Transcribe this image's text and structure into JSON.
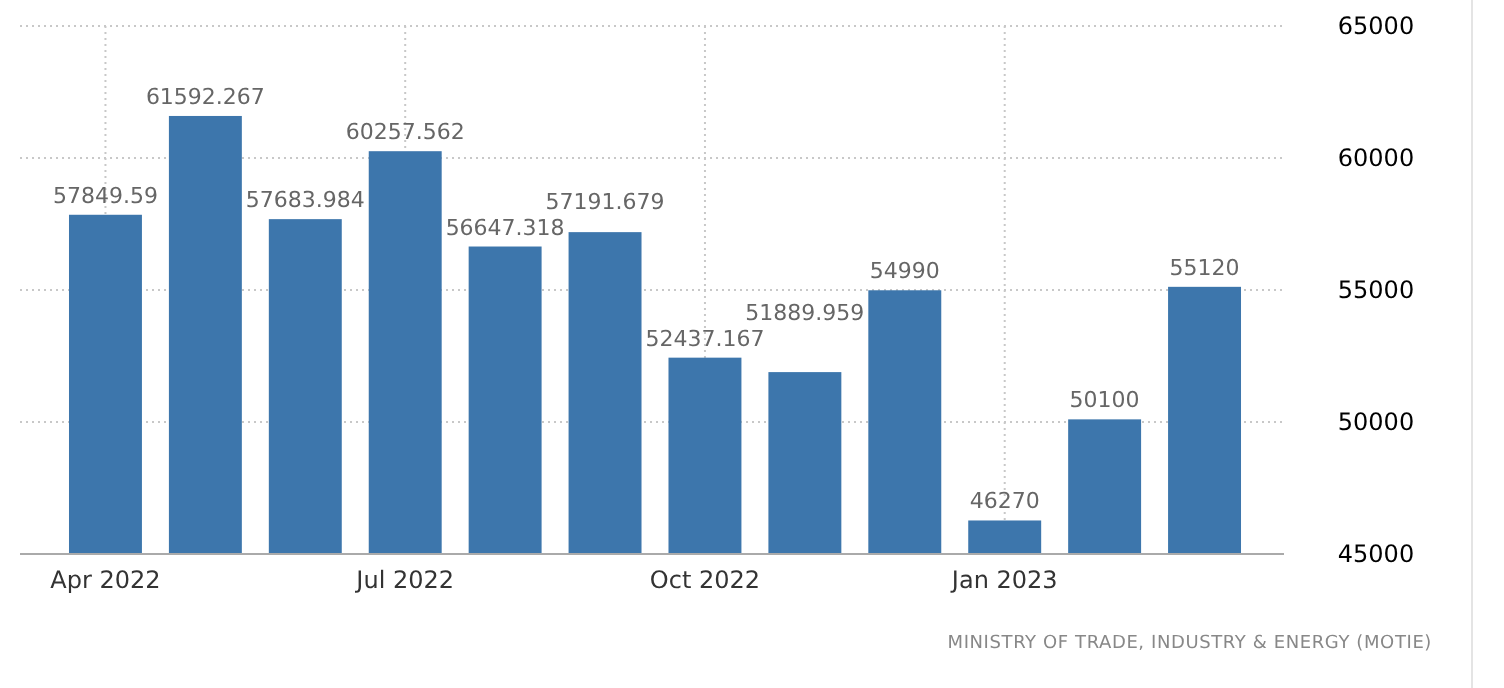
{
  "chart_data": {
    "type": "bar",
    "categories": [
      "Apr 2022",
      null,
      null,
      "Jul 2022",
      null,
      null,
      "Oct 2022",
      null,
      null,
      "Jan 2023",
      null,
      null
    ],
    "values": [
      57849.59,
      61592.267,
      57683.984,
      60257.562,
      56647.318,
      57191.679,
      52437.167,
      51889.959,
      54990,
      46270,
      50100,
      55120
    ],
    "color": "#3d76ac",
    "ylim": [
      45000,
      65000
    ],
    "yticks": [
      45000,
      50000,
      55000,
      60000,
      65000
    ],
    "grid": true,
    "data_labels": true,
    "annotations": [
      "MINISTRY OF TRADE, INDUSTRY & ENERGY (MOTIE)"
    ]
  }
}
